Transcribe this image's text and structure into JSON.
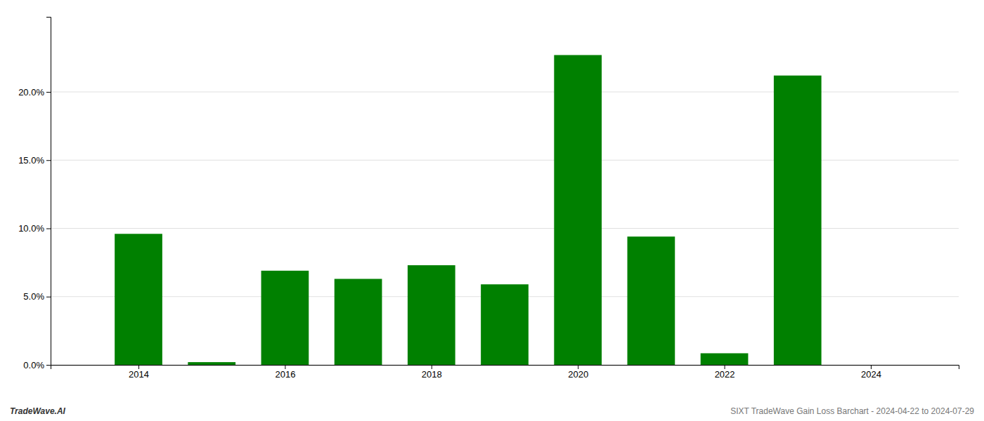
{
  "chart_data": {
    "type": "bar",
    "x": [
      2014,
      2015,
      2016,
      2017,
      2018,
      2019,
      2020,
      2021,
      2022,
      2023,
      2024
    ],
    "values": [
      0.096,
      0.002,
      0.069,
      0.063,
      0.073,
      0.059,
      0.227,
      0.094,
      0.0085,
      0.212,
      0.0
    ],
    "color": "#008000",
    "xlim": [
      2012.8,
      2025.2
    ],
    "xticks": [
      2014,
      2016,
      2018,
      2020,
      2022,
      2024
    ],
    "ylim": [
      0,
      0.255
    ],
    "yticks": [
      {
        "value": 0.0,
        "label": "0.0%"
      },
      {
        "value": 0.05,
        "label": "5.0%"
      },
      {
        "value": 0.1,
        "label": "10.0%"
      },
      {
        "value": 0.15,
        "label": "15.0%"
      },
      {
        "value": 0.2,
        "label": "20.0%"
      }
    ],
    "grid": true,
    "annotations": [
      "TradeWave.AI",
      "SIXT TradeWave Gain Loss Barchart - 2024-04-22 to 2024-07-29"
    ]
  }
}
